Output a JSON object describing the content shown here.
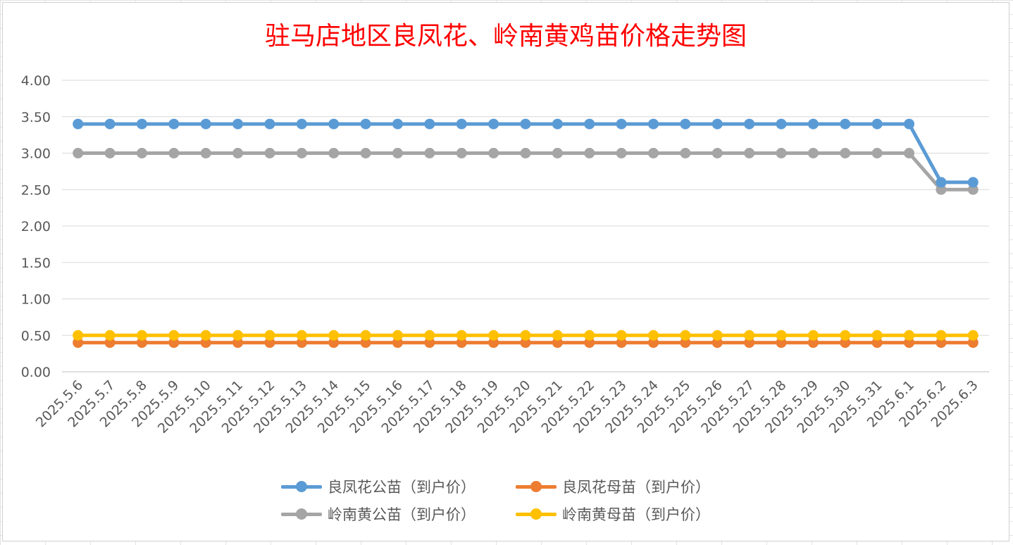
{
  "chart_data": {
    "type": "line",
    "title": "驻马店地区良凤花、岭南黄鸡苗价格走势图",
    "xlabel": "",
    "ylabel": "",
    "ylim": [
      0,
      4
    ],
    "yticks": [
      "0.00",
      "0.50",
      "1.00",
      "1.50",
      "2.00",
      "2.50",
      "3.00",
      "3.50",
      "4.00"
    ],
    "grid": true,
    "legend_position": "bottom",
    "categories": [
      "2025.5.6",
      "2025.5.7",
      "2025.5.8",
      "2025.5.9",
      "2025.5.10",
      "2025.5.11",
      "2025.5.12",
      "2025.5.13",
      "2025.5.14",
      "2025.5.15",
      "2025.5.16",
      "2025.5.17",
      "2025.5.18",
      "2025.5.19",
      "2025.5.20",
      "2025.5.21",
      "2025.5.22",
      "2025.5.23",
      "2025.5.24",
      "2025.5.25",
      "2025.5.26",
      "2025.5.27",
      "2025.5.28",
      "2025.5.29",
      "2025.5.30",
      "2025.5.31",
      "2025.6.1",
      "2025.6.2",
      "2025.6.3"
    ],
    "series": [
      {
        "name": "良凤花公苗（到户价）",
        "color": "#5b9bd5",
        "values": [
          3.4,
          3.4,
          3.4,
          3.4,
          3.4,
          3.4,
          3.4,
          3.4,
          3.4,
          3.4,
          3.4,
          3.4,
          3.4,
          3.4,
          3.4,
          3.4,
          3.4,
          3.4,
          3.4,
          3.4,
          3.4,
          3.4,
          3.4,
          3.4,
          3.4,
          3.4,
          3.4,
          2.6,
          2.6
        ]
      },
      {
        "name": "良凤花母苗（到户价）",
        "color": "#ed7d31",
        "values": [
          0.4,
          0.4,
          0.4,
          0.4,
          0.4,
          0.4,
          0.4,
          0.4,
          0.4,
          0.4,
          0.4,
          0.4,
          0.4,
          0.4,
          0.4,
          0.4,
          0.4,
          0.4,
          0.4,
          0.4,
          0.4,
          0.4,
          0.4,
          0.4,
          0.4,
          0.4,
          0.4,
          0.4,
          0.4
        ]
      },
      {
        "name": "岭南黄公苗（到户价）",
        "color": "#a5a5a5",
        "values": [
          3.0,
          3.0,
          3.0,
          3.0,
          3.0,
          3.0,
          3.0,
          3.0,
          3.0,
          3.0,
          3.0,
          3.0,
          3.0,
          3.0,
          3.0,
          3.0,
          3.0,
          3.0,
          3.0,
          3.0,
          3.0,
          3.0,
          3.0,
          3.0,
          3.0,
          3.0,
          3.0,
          2.5,
          2.5
        ]
      },
      {
        "name": "岭南黄母苗（到户价）",
        "color": "#ffc000",
        "values": [
          0.5,
          0.5,
          0.5,
          0.5,
          0.5,
          0.5,
          0.5,
          0.5,
          0.5,
          0.5,
          0.5,
          0.5,
          0.5,
          0.5,
          0.5,
          0.5,
          0.5,
          0.5,
          0.5,
          0.5,
          0.5,
          0.5,
          0.5,
          0.5,
          0.5,
          0.5,
          0.5,
          0.5,
          0.5
        ]
      }
    ]
  }
}
